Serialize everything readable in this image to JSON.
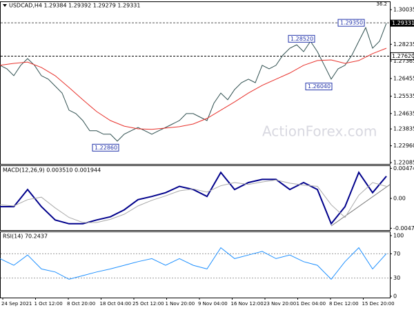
{
  "chart_data": [
    {
      "type": "line",
      "title": "USDCAD,H4  1.29384 1.29392 1.29279 1.29331",
      "corner_text": "36.2",
      "watermark": "ActionForex.com",
      "ylim": [
        1.22085,
        1.30035
      ],
      "yticks": [
        1.30035,
        1.28235,
        1.27365,
        1.26455,
        1.25535,
        1.24635,
        1.23835,
        {
          "value": 1.2296,
          "label": "1.22960"
        },
        1.22085
      ],
      "series": [
        {
          "color": "#2f4f4f",
          "values": [
            1.2714,
            1.2696,
            1.266,
            1.2714,
            1.2749,
            1.2714,
            1.266,
            1.2642,
            1.2606,
            1.257,
            1.2481,
            1.2463,
            1.2427,
            1.2374,
            1.2374,
            1.2356,
            1.2356,
            1.232,
            1.2356,
            1.2374,
            1.2391,
            1.2374,
            1.2356,
            1.2374,
            1.2391,
            1.2409,
            1.2427,
            1.2463,
            1.2463,
            1.2445,
            1.2427,
            1.2517,
            1.257,
            1.2535,
            1.2588,
            1.2624,
            1.2642,
            1.2624,
            1.2714,
            1.2696,
            1.2714,
            1.2767,
            1.2803,
            1.2821,
            1.2785,
            1.2839,
            1.2785,
            1.2714,
            1.2642,
            1.2696,
            1.2714,
            1.2767,
            1.2839,
            1.291,
            1.2803,
            1.2839,
            1.2933
          ]
        },
        {
          "color": "#e8302a",
          "values": [
            1.2714,
            1.2724,
            1.2731,
            1.2703,
            1.266,
            1.2599,
            1.2535,
            1.2474,
            1.2427,
            1.2398,
            1.2384,
            1.2381,
            1.2388,
            1.2395,
            1.2409,
            1.2438,
            1.2481,
            1.2524,
            1.257,
            1.261,
            1.2642,
            1.2674,
            1.2714,
            1.2739,
            1.2742,
            1.2724,
            1.2739,
            1.2775,
            1.2803
          ]
        }
      ],
      "annotations": [
        {
          "value": 1.2935,
          "label": "1.29350"
        },
        {
          "value": 1.2852,
          "label": "1.28520"
        },
        {
          "value": 1.2604,
          "label": "1.26040"
        },
        {
          "value": 1.2286,
          "label": "1.22860"
        }
      ],
      "hlines": [
        {
          "value": 1.2762,
          "label": "1.27620"
        }
      ],
      "price_line": {
        "value": 1.29331,
        "label": "1.29331"
      }
    },
    {
      "type": "line",
      "title": "MACD(12,26,9) 0.003510 0.001944",
      "ylim": [
        -0.005,
        0.005
      ],
      "yticks": [
        0.004745,
        {
          "value": 0,
          "label": "0.00"
        },
        -0.004712
      ],
      "series": [
        {
          "color": "#00008b",
          "values": [
            -0.0013,
            -0.0013,
            0.0014,
            -0.0013,
            -0.0034,
            -0.004,
            -0.004,
            -0.0034,
            -0.0029,
            -0.0018,
            -0.0002,
            0.0003,
            0.0009,
            0.0019,
            0.0014,
            0.0003,
            0.0041,
            0.0014,
            0.0025,
            0.003,
            0.003,
            0.0014,
            0.0025,
            0.0014,
            -0.004,
            -0.0013,
            0.0041,
            0.0009,
            0.0035
          ]
        },
        {
          "color": "#a9a9a9",
          "values": [
            -0.001,
            -0.0012,
            -0.0002,
            0.0002,
            -0.0015,
            -0.003,
            -0.0038,
            -0.0038,
            -0.0033,
            -0.0025,
            -0.0012,
            -0.0003,
            0.0004,
            0.0012,
            0.0015,
            0.001,
            0.002,
            0.0025,
            0.0022,
            0.0026,
            0.0029,
            0.0024,
            0.0021,
            0.0019,
            -0.001,
            -0.003,
            0.0005,
            0.0025,
            0.0019
          ]
        }
      ]
    },
    {
      "type": "line",
      "title": "RSI(14) 70.2437",
      "ylim": [
        0,
        100
      ],
      "yticks": [
        100,
        70,
        30,
        0
      ],
      "levels": [
        70,
        30
      ],
      "series": [
        {
          "color": "#1e90ff",
          "values": [
            62,
            51,
            68,
            45,
            40,
            28,
            34,
            40,
            45,
            51,
            57,
            62,
            51,
            62,
            51,
            45,
            80,
            62,
            68,
            74,
            62,
            68,
            57,
            51,
            28,
            57,
            80,
            45,
            70.2437
          ]
        }
      ]
    }
  ],
  "time_axis": [
    "24 Sep 2021",
    "1 Oct 12:00",
    "8 Oct 20:00",
    "18 Oct 04:00",
    "25 Oct 12:00",
    "1 Nov 20:00",
    "9 Nov 04:00",
    "16 Nov 12:00",
    "23 Nov 20:00",
    "1 Dec 04:00",
    "8 Dec 12:00",
    "15 Dec 20:00"
  ]
}
